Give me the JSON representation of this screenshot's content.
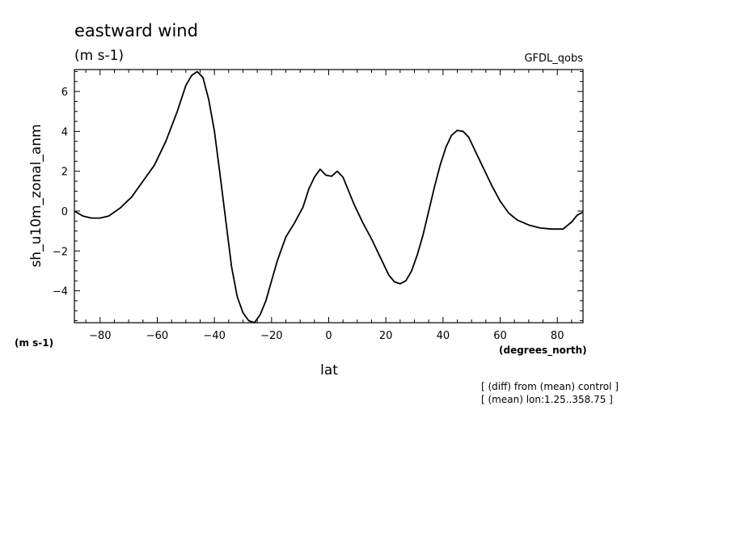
{
  "chart_data": {
    "type": "line",
    "title": "eastward wind",
    "subtitle": "(m s-1)",
    "source_label": "GFDL_qobs",
    "ylabel": "sh_u10m_zonal_anm",
    "y_units": "(m s-1)",
    "xlabel": "lat",
    "x_units": "(degrees_north)",
    "notes": [
      "[ (diff) from (mean) control ]",
      "[ (mean) lon:1.25..358.75 ]"
    ],
    "xlim": [
      -89,
      89
    ],
    "ylim": [
      -5.6,
      7.1
    ],
    "x_ticks": [
      -80,
      -60,
      -40,
      -20,
      0,
      20,
      40,
      60,
      80
    ],
    "y_ticks": [
      -4,
      -2,
      0,
      2,
      4,
      6
    ],
    "grid": false,
    "series": [
      {
        "x": [
          -89,
          -86,
          -83,
          -80,
          -77,
          -73,
          -69,
          -65,
          -61,
          -57,
          -53,
          -50,
          -48,
          -46,
          -44,
          -42,
          -40,
          -38,
          -36,
          -34,
          -32,
          -30,
          -28,
          -26,
          -24,
          -22,
          -20,
          -18,
          -15,
          -12,
          -9,
          -7,
          -5,
          -3,
          -1,
          1,
          3,
          5,
          7,
          9,
          12,
          15,
          18,
          21,
          23,
          25,
          27,
          29,
          31,
          33,
          35,
          37,
          39,
          41,
          43,
          45,
          47,
          49,
          51,
          54,
          57,
          60,
          63,
          66,
          70,
          74,
          78,
          82,
          85,
          87,
          89
        ],
        "y": [
          0.0,
          -0.25,
          -0.35,
          -0.35,
          -0.25,
          0.15,
          0.7,
          1.5,
          2.3,
          3.5,
          5.0,
          6.3,
          6.8,
          7.0,
          6.7,
          5.6,
          4.0,
          1.8,
          -0.5,
          -2.8,
          -4.3,
          -5.1,
          -5.5,
          -5.6,
          -5.2,
          -4.5,
          -3.5,
          -2.5,
          -1.3,
          -0.6,
          0.2,
          1.1,
          1.7,
          2.1,
          1.8,
          1.75,
          2.0,
          1.7,
          1.0,
          0.3,
          -0.6,
          -1.4,
          -2.3,
          -3.2,
          -3.55,
          -3.65,
          -3.5,
          -3.0,
          -2.2,
          -1.2,
          0.0,
          1.2,
          2.3,
          3.2,
          3.8,
          4.05,
          4.0,
          3.7,
          3.1,
          2.2,
          1.3,
          0.5,
          -0.1,
          -0.45,
          -0.7,
          -0.85,
          -0.9,
          -0.9,
          -0.55,
          -0.2,
          -0.05
        ]
      }
    ]
  }
}
